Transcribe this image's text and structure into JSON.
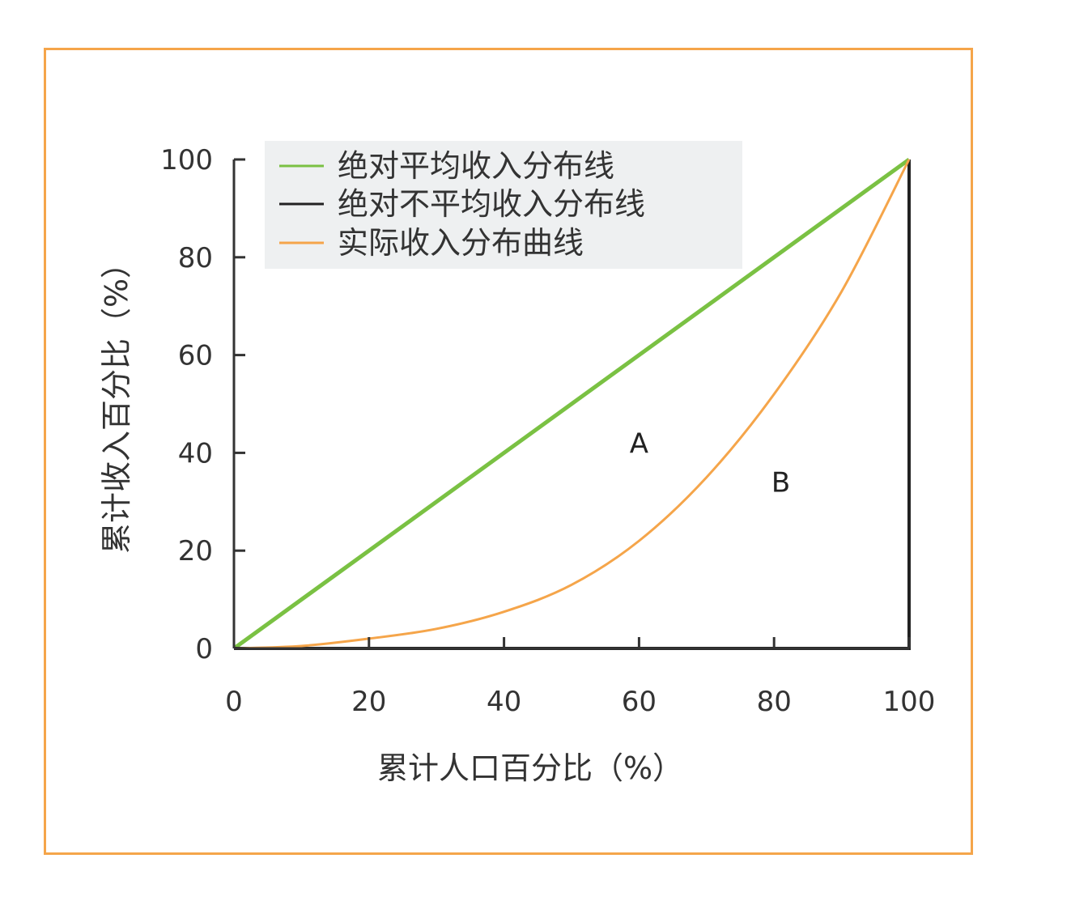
{
  "colors": {
    "frame": "#f5a54a",
    "equality": "#7ac143",
    "inequality": "#222222",
    "actual": "#f5a54a",
    "axis": "#333333",
    "legend_bg": "#eef0f1"
  },
  "chart_data": {
    "type": "line",
    "title": "",
    "xlabel": "累计人口百分比（%）",
    "ylabel": "累计收入百分比（%）",
    "xlim": [
      0,
      100
    ],
    "ylim": [
      0,
      100
    ],
    "xticks": [
      "0",
      "20",
      "40",
      "60",
      "80",
      "100"
    ],
    "yticks": [
      "0",
      "20",
      "40",
      "60",
      "80",
      "100"
    ],
    "legend_position": "top-left",
    "series": [
      {
        "name": "绝对平均收入分布线",
        "color": "#7ac143",
        "x": [
          0,
          100
        ],
        "y": [
          0,
          100
        ]
      },
      {
        "name": "绝对不平均收入分布线",
        "color": "#222222",
        "x": [
          0,
          100,
          100
        ],
        "y": [
          0,
          0,
          100
        ]
      },
      {
        "name": "实际收入分布曲线",
        "color": "#f5a54a",
        "x": [
          0,
          10,
          20,
          30,
          40,
          50,
          60,
          70,
          80,
          90,
          100
        ],
        "y": [
          0,
          0.5,
          2,
          4,
          7.5,
          13,
          22,
          35,
          52,
          73,
          100
        ]
      }
    ],
    "annotations": [
      {
        "text": "A",
        "x": 60,
        "y": 42
      },
      {
        "text": "B",
        "x": 81,
        "y": 34
      }
    ]
  }
}
